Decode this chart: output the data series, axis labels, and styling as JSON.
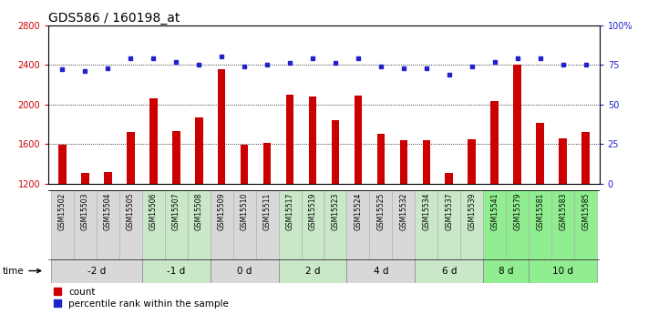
{
  "title": "GDS586 / 160198_at",
  "samples": [
    "GSM15502",
    "GSM15503",
    "GSM15504",
    "GSM15505",
    "GSM15506",
    "GSM15507",
    "GSM15508",
    "GSM15509",
    "GSM15510",
    "GSM15511",
    "GSM15517",
    "GSM15519",
    "GSM15523",
    "GSM15524",
    "GSM15525",
    "GSM15532",
    "GSM15534",
    "GSM15537",
    "GSM15539",
    "GSM15541",
    "GSM15579",
    "GSM15581",
    "GSM15583",
    "GSM15585"
  ],
  "counts": [
    1590,
    1310,
    1320,
    1720,
    2060,
    1730,
    1870,
    2360,
    1590,
    1615,
    2100,
    2080,
    1840,
    2090,
    1700,
    1640,
    1640,
    1310,
    1650,
    2030,
    2400,
    1810,
    1660,
    1720
  ],
  "percentiles": [
    72,
    71,
    73,
    79,
    79,
    77,
    75,
    80,
    74,
    75,
    76,
    79,
    76,
    79,
    74,
    73,
    73,
    69,
    74,
    77,
    79,
    79,
    75,
    75
  ],
  "groups": [
    {
      "label": "-2 d",
      "indices": [
        0,
        1,
        2,
        3
      ],
      "color": "#d8d8d8"
    },
    {
      "label": "-1 d",
      "indices": [
        4,
        5,
        6
      ],
      "color": "#c8e8c8"
    },
    {
      "label": "0 d",
      "indices": [
        7,
        8,
        9
      ],
      "color": "#d8d8d8"
    },
    {
      "label": "2 d",
      "indices": [
        10,
        11,
        12
      ],
      "color": "#c8e8c8"
    },
    {
      "label": "4 d",
      "indices": [
        13,
        14,
        15
      ],
      "color": "#d8d8d8"
    },
    {
      "label": "6 d",
      "indices": [
        16,
        17,
        18
      ],
      "color": "#c8e8c8"
    },
    {
      "label": "8 d",
      "indices": [
        19,
        20
      ],
      "color": "#90ee90"
    },
    {
      "label": "10 d",
      "indices": [
        21,
        22,
        23
      ],
      "color": "#90ee90"
    }
  ],
  "ylim_left": [
    1200,
    2800
  ],
  "ylim_right": [
    0,
    100
  ],
  "yticks_left": [
    1200,
    1600,
    2000,
    2400,
    2800
  ],
  "yticks_right": [
    0,
    25,
    50,
    75,
    100
  ],
  "bar_color": "#cc0000",
  "dot_color": "#2222cc",
  "background_color": "#ffffff",
  "title_fontsize": 10,
  "tick_fontsize": 7,
  "legend_fontsize": 7.5
}
